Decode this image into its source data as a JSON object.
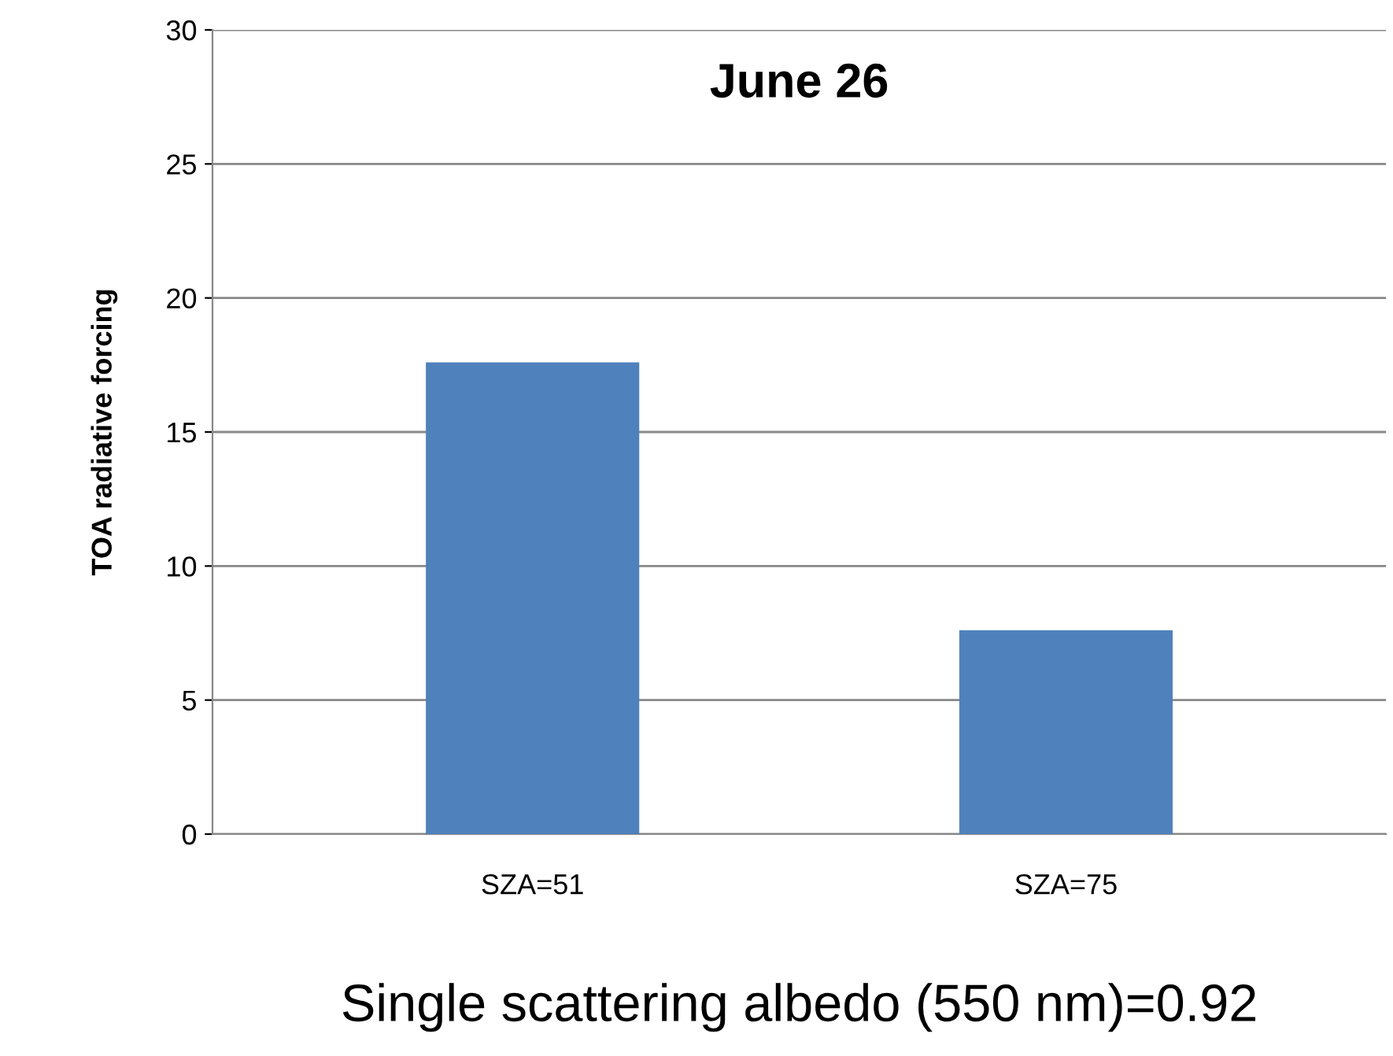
{
  "chart_data": {
    "type": "bar",
    "title": "June 26",
    "xlabel": "Single scattering albedo (550 nm)=0.92",
    "ylabel": "TOA radiative forcing",
    "categories": [
      "SZA=51",
      "SZA=75"
    ],
    "series": [
      {
        "color": "#4f81bd",
        "values": [
          17.6,
          7.6
        ]
      }
    ],
    "ylim": [
      0,
      30
    ],
    "yticks": [
      0,
      5,
      10,
      15,
      20,
      25,
      30
    ],
    "grid": "y",
    "legend": false
  }
}
